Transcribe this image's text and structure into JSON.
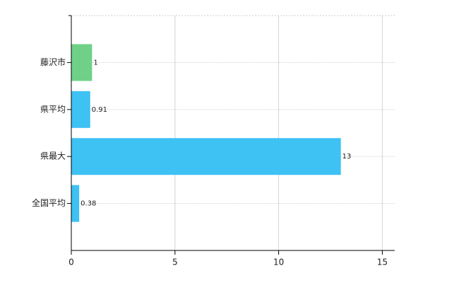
{
  "chart_data": {
    "type": "bar",
    "orientation": "horizontal",
    "categories": [
      "藤沢市",
      "県平均",
      "県最大",
      "全国平均"
    ],
    "values": [
      1,
      0.91,
      13,
      0.38
    ],
    "colors": [
      "#6fd187",
      "#3ec1f3",
      "#3ec1f3",
      "#3ec1f3"
    ],
    "xlim": [
      0,
      15.6
    ],
    "xticks": [
      0,
      5,
      10,
      15
    ],
    "grid": true
  }
}
